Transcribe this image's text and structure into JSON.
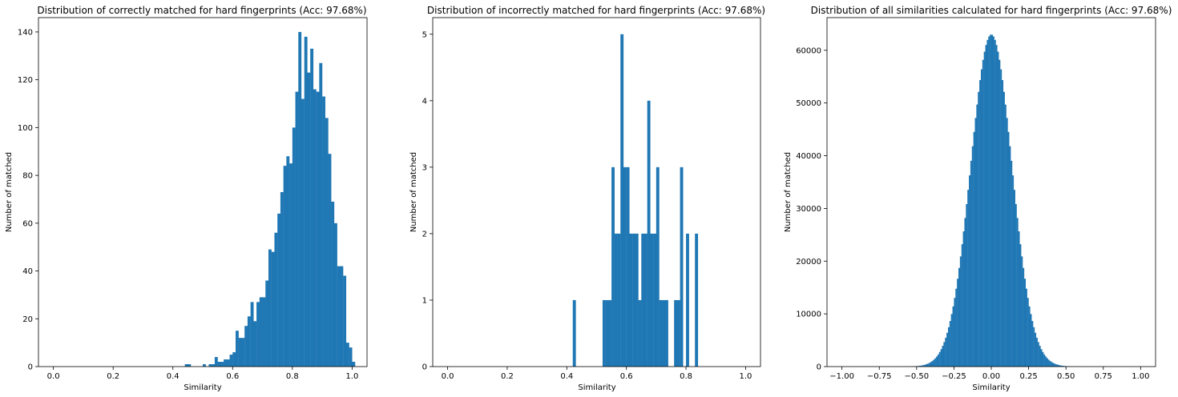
{
  "chart_data": [
    {
      "type": "bar",
      "title": "Distribution of correctly matched for hard fingerprints (Acc: 97.68%)",
      "xlabel": "Similarity",
      "ylabel": "Number of matched",
      "xlim": [
        -0.05,
        1.05
      ],
      "ylim": [
        0,
        146
      ],
      "xticks": [
        0.0,
        0.2,
        0.4,
        0.6,
        0.8,
        1.0
      ],
      "xtick_labels": [
        "0.0",
        "0.2",
        "0.4",
        "0.6",
        "0.8",
        "1.0"
      ],
      "yticks": [
        0,
        20,
        40,
        60,
        80,
        100,
        120,
        140
      ],
      "ytick_labels": [
        "0",
        "20",
        "40",
        "60",
        "80",
        "100",
        "120",
        "140"
      ],
      "bins": {
        "start": 0.0,
        "width": 0.01
      },
      "values": [
        0,
        0,
        0,
        0,
        0,
        0,
        0,
        0,
        0,
        0,
        0,
        0,
        0,
        0,
        0,
        0,
        0,
        0,
        0,
        0,
        0,
        0,
        0,
        0,
        0,
        0,
        0,
        0,
        0,
        0,
        0,
        0,
        0,
        0,
        0,
        0,
        0,
        0,
        0,
        0,
        0,
        0,
        0,
        0,
        1,
        1,
        0,
        0,
        0,
        0,
        1,
        0,
        1,
        1,
        4,
        2,
        2,
        3,
        3,
        5,
        6,
        15,
        12,
        12,
        17,
        21,
        27,
        19,
        27,
        29,
        29,
        36,
        49,
        48,
        56,
        64,
        73,
        84,
        88,
        85,
        100,
        115,
        140,
        112,
        138,
        123,
        133,
        116,
        115,
        127,
        113,
        104,
        89,
        69,
        60,
        42,
        42,
        38,
        10,
        8,
        2,
        0
      ],
      "grid": false,
      "color": "#1f77b4"
    },
    {
      "type": "bar",
      "title": "Distribution of incorrectly matched for hard fingerprints (Acc: 97.68%)",
      "xlabel": "Similarity",
      "ylabel": "Number of matched",
      "xlim": [
        -0.05,
        1.05
      ],
      "ylim": [
        0,
        5.25
      ],
      "xticks": [
        0.0,
        0.2,
        0.4,
        0.6,
        0.8,
        1.0
      ],
      "xtick_labels": [
        "0.0",
        "0.2",
        "0.4",
        "0.6",
        "0.8",
        "1.0"
      ],
      "yticks": [
        0,
        1,
        2,
        3,
        4,
        5
      ],
      "ytick_labels": [
        "0",
        "1",
        "2",
        "3",
        "4",
        "5"
      ],
      "bins": {
        "start": 0.0,
        "width": 0.01
      },
      "values": [
        0,
        0,
        0,
        0,
        0,
        0,
        0,
        0,
        0,
        0,
        0,
        0,
        0,
        0,
        0,
        0,
        0,
        0,
        0,
        0,
        0,
        0,
        0,
        0,
        0,
        0,
        0,
        0,
        0,
        0,
        0,
        0,
        0,
        0,
        0,
        0,
        0,
        0,
        0,
        0,
        0,
        0,
        1,
        0,
        0,
        0,
        0,
        0,
        0,
        0,
        0,
        0,
        1,
        1,
        1,
        3,
        2,
        2,
        5,
        3,
        3,
        2,
        2,
        2,
        1,
        2,
        2,
        4,
        2,
        2,
        3,
        1,
        1,
        1,
        0,
        0,
        1,
        1,
        3,
        0,
        2,
        0,
        0,
        2,
        0,
        0,
        0,
        0,
        0,
        0,
        0,
        0,
        0,
        0,
        0,
        0,
        0,
        0,
        0,
        0,
        0
      ],
      "grid": false,
      "color": "#1f77b4"
    },
    {
      "type": "bar",
      "title": "Distribution of all similarities calculated for hard fingerprints (Acc: 97.68%)",
      "xlabel": "Similarity",
      "ylabel": "Number of matched",
      "xlim": [
        -1.1,
        1.1
      ],
      "ylim": [
        0,
        66200
      ],
      "xticks": [
        -1.0,
        -0.75,
        -0.5,
        -0.25,
        0.0,
        0.25,
        0.5,
        0.75,
        1.0
      ],
      "xtick_labels": [
        "−1.00",
        "−0.75",
        "−0.50",
        "−0.25",
        "0.00",
        "0.25",
        "0.50",
        "0.75",
        "1.00"
      ],
      "yticks": [
        0,
        10000,
        20000,
        30000,
        40000,
        50000,
        60000
      ],
      "ytick_labels": [
        "0",
        "10000",
        "20000",
        "30000",
        "40000",
        "50000",
        "60000"
      ],
      "distribution": {
        "kind": "normal",
        "mean": 0.0,
        "sd": 0.138,
        "peak": 63000,
        "range": [
          -0.7,
          0.92
        ],
        "bin_width": 0.01
      },
      "grid": false,
      "color": "#1f77b4"
    }
  ]
}
